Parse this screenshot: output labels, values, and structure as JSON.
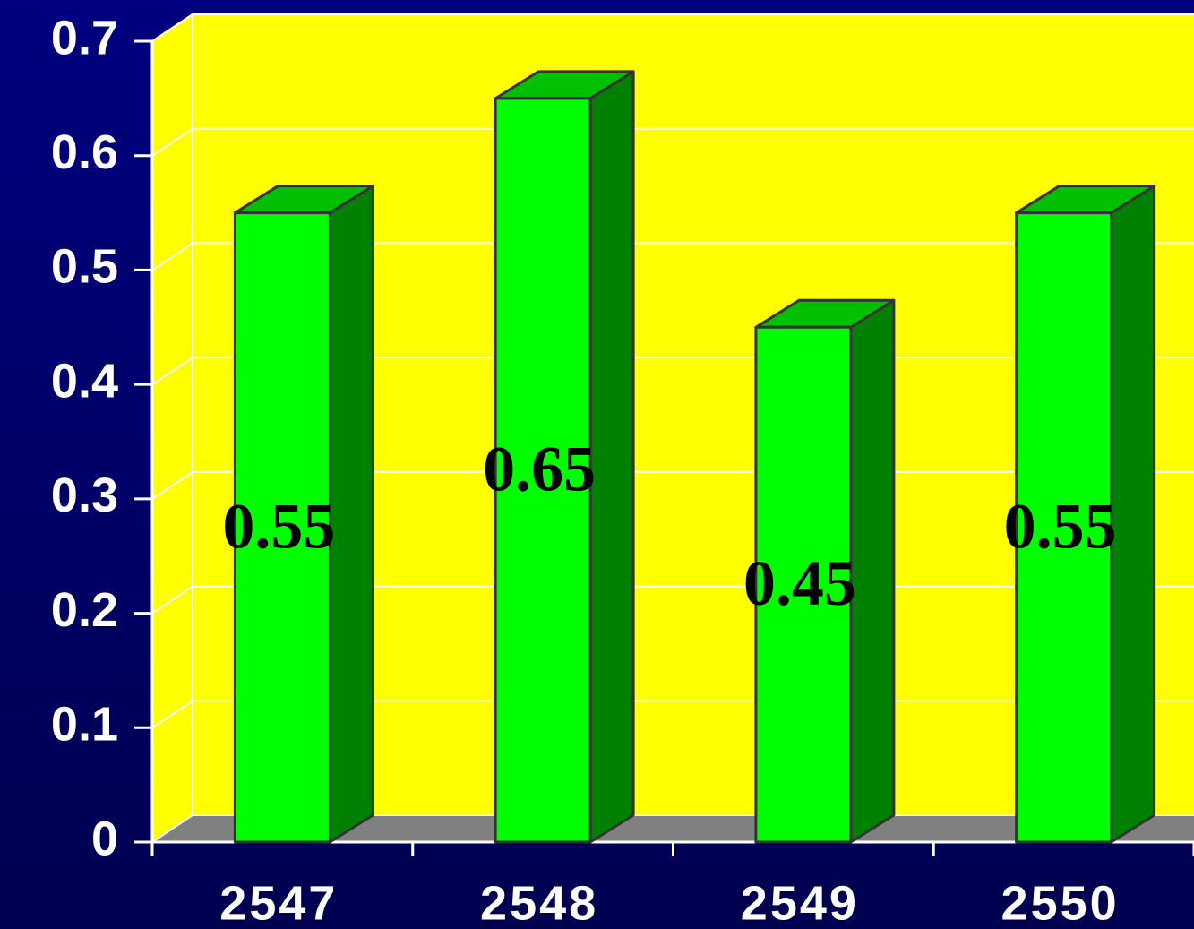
{
  "chart_data": {
    "type": "bar3d",
    "categories": [
      "2547",
      "2548",
      "2549",
      "2550"
    ],
    "values": [
      0.55,
      0.65,
      0.45,
      0.55
    ],
    "color": "#00ff00",
    "ylim": [
      0,
      0.7
    ],
    "yticks": [
      0,
      0.1,
      0.2,
      0.3,
      0.4,
      0.5,
      0.6,
      0.7
    ],
    "grid": true
  }
}
